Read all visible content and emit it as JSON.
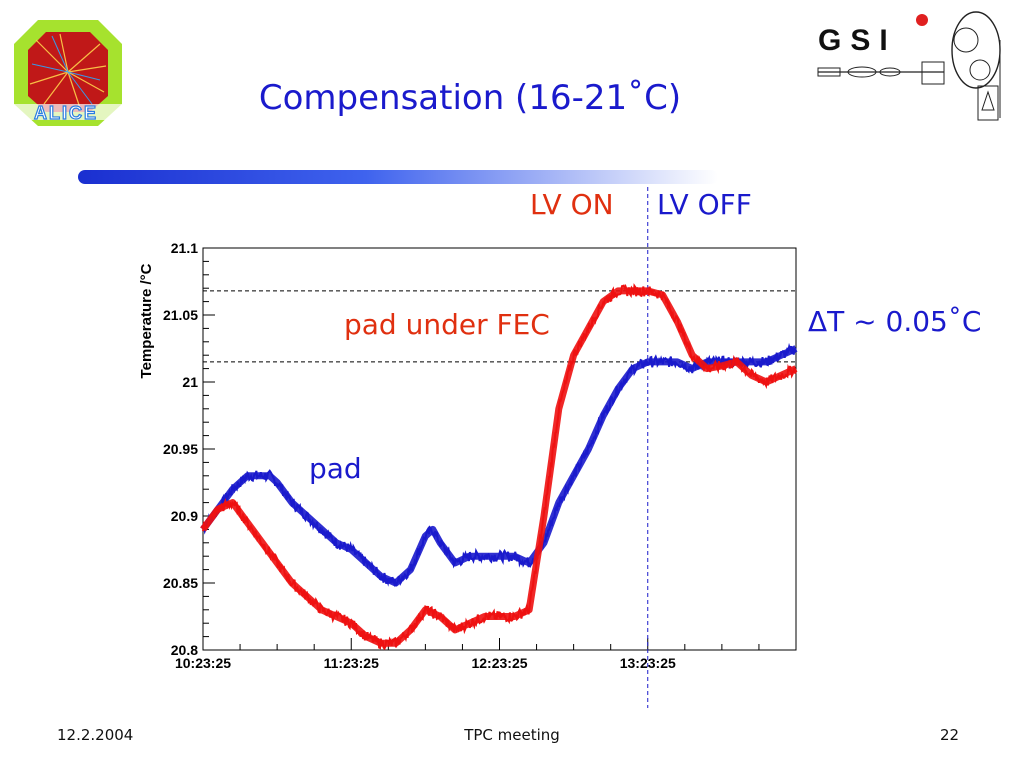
{
  "slide": {
    "title": "Compensation (16-21˚C)",
    "footer_date": "12.2.2004",
    "footer_center": "TPC meeting",
    "page_number": "22",
    "logo_left_text": "ALICE",
    "logo_right_text": "GSI"
  },
  "annotations": {
    "lv_on": "LV ON",
    "lv_off": "LV OFF",
    "delta_t": "ΔT ~ 0.05˚C",
    "pad_under_fec": "pad under FEC",
    "pad": "pad"
  },
  "colors": {
    "title": "#1a1acc",
    "pad_series": "#1a1acc",
    "fec_series": "#ee1111",
    "lv_on": "#e03010"
  },
  "chart_data": {
    "type": "line",
    "title": "",
    "xlabel": "",
    "ylabel": "Temperature /°C",
    "ylim": [
      20.8,
      21.1
    ],
    "xlim": [
      0,
      4.0
    ],
    "x_unit": "hours after 10:23:25",
    "x_ticks": [
      {
        "value": 0,
        "label": "10:23:25"
      },
      {
        "value": 1,
        "label": "11:23:25"
      },
      {
        "value": 2,
        "label": "12:23:25"
      },
      {
        "value": 3,
        "label": "13:23:25"
      }
    ],
    "y_ticks": [
      {
        "value": 20.8,
        "label": "20.8"
      },
      {
        "value": 20.85,
        "label": "20.85"
      },
      {
        "value": 20.9,
        "label": "20.9"
      },
      {
        "value": 20.95,
        "label": "20.95"
      },
      {
        "value": 21,
        "label": "21"
      },
      {
        "value": 21.05,
        "label": "21.05"
      },
      {
        "value": 21.1,
        "label": "21.1"
      }
    ],
    "grid": false,
    "reference_lines": [
      {
        "orientation": "vertical",
        "x": 3.0,
        "style": "dashed",
        "color": "#1a1acc"
      },
      {
        "orientation": "horizontal",
        "y": 21.068,
        "style": "dashed",
        "color": "#000000"
      },
      {
        "orientation": "horizontal",
        "y": 21.015,
        "style": "dashed",
        "color": "#000000"
      }
    ],
    "series": [
      {
        "color": "#1a1acc",
        "x": [
          0,
          0.1,
          0.2,
          0.3,
          0.45,
          0.5,
          0.6,
          0.7,
          0.8,
          0.9,
          1.0,
          1.1,
          1.2,
          1.3,
          1.4,
          1.5,
          1.55,
          1.6,
          1.7,
          1.8,
          1.9,
          2.0,
          2.1,
          2.2,
          2.3,
          2.4,
          2.5,
          2.6,
          2.7,
          2.8,
          2.9,
          3.0,
          3.1,
          3.2,
          3.3,
          3.4,
          3.5,
          3.6,
          3.7,
          3.8,
          3.9,
          4.0
        ],
        "y": [
          20.89,
          20.905,
          20.92,
          20.93,
          20.93,
          20.925,
          20.91,
          20.9,
          20.89,
          20.88,
          20.875,
          20.865,
          20.855,
          20.85,
          20.86,
          20.885,
          20.89,
          20.88,
          20.865,
          20.87,
          20.87,
          20.87,
          20.87,
          20.865,
          20.88,
          20.91,
          20.93,
          20.95,
          20.975,
          20.995,
          21.01,
          21.015,
          21.015,
          21.015,
          21.01,
          21.015,
          21.015,
          21.015,
          21.015,
          21.015,
          21.02,
          21.025
        ]
      },
      {
        "color": "#ee1111",
        "x": [
          0,
          0.1,
          0.2,
          0.3,
          0.4,
          0.5,
          0.6,
          0.7,
          0.8,
          0.9,
          1.0,
          1.1,
          1.2,
          1.3,
          1.4,
          1.5,
          1.6,
          1.7,
          1.8,
          1.9,
          2.0,
          2.1,
          2.2,
          2.3,
          2.4,
          2.5,
          2.6,
          2.7,
          2.8,
          2.9,
          3.0,
          3.1,
          3.2,
          3.3,
          3.4,
          3.5,
          3.6,
          3.7,
          3.8,
          3.9,
          4.0
        ],
        "y": [
          20.89,
          20.905,
          20.91,
          20.895,
          20.88,
          20.865,
          20.85,
          20.84,
          20.83,
          20.825,
          20.82,
          20.81,
          20.805,
          20.805,
          20.815,
          20.83,
          20.825,
          20.815,
          20.82,
          20.825,
          20.825,
          20.825,
          20.83,
          20.9,
          20.98,
          21.02,
          21.04,
          21.06,
          21.068,
          21.068,
          21.068,
          21.065,
          21.045,
          21.02,
          21.01,
          21.012,
          21.015,
          21.005,
          21.0,
          21.005,
          21.01
        ]
      }
    ]
  }
}
